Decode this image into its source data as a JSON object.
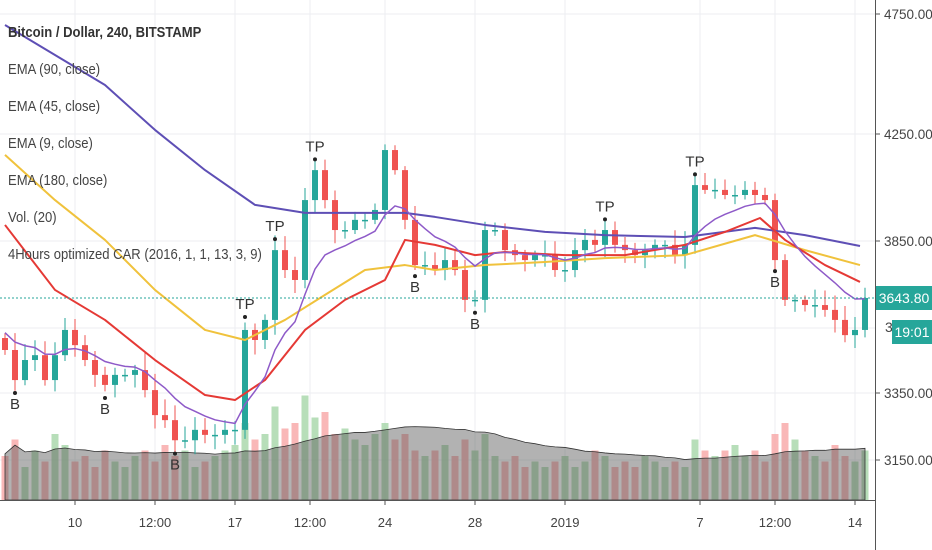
{
  "legend": {
    "title": "Bitcoin / Dollar, 240, BITSTAMP",
    "items": [
      "EMA (90, close)",
      "EMA (45, close)",
      "EMA (9, close)",
      "EMA (180, close)",
      "Vol. (20)",
      "4Hours optimized CAR (2016, 1, 1, 13, 3, 9)"
    ]
  },
  "price_axis": {
    "ticks": [
      "4750.00",
      "4250.00",
      "3850.00",
      "3350.00",
      "3150.00"
    ],
    "partial_tick": "3",
    "last_price": "3643.80",
    "countdown": "19:01"
  },
  "colors": {
    "up": "#26a69a",
    "down": "#ef5350",
    "ema180": "#5e4fb5",
    "ema90": "#f0c23c",
    "ema45": "#e53935",
    "ema9": "#8e5ac8",
    "last_price": "#26a69a"
  },
  "chart_data": {
    "type": "candlestick",
    "title": "Bitcoin / Dollar, 240, BITSTAMP",
    "x_ticks": [
      {
        "label": "10",
        "index": 7
      },
      {
        "label": "12:00",
        "index": 15
      },
      {
        "label": "17",
        "index": 23
      },
      {
        "label": "12:00",
        "index": 30.5
      },
      {
        "label": "24",
        "index": 38
      },
      {
        "label": "28",
        "index": 47
      },
      {
        "label": "2019",
        "index": 56
      },
      {
        "label": "7",
        "index": 69.5
      },
      {
        "label": "12:00",
        "index": 77
      },
      {
        "label": "14",
        "index": 85
      }
    ],
    "y_ticks": [
      4750,
      4250,
      3850,
      3350,
      3150
    ],
    "closes": [
      3483,
      3390,
      3452,
      3467,
      3390,
      3467,
      3545,
      3498,
      3452,
      3406,
      3375,
      3406,
      3406,
      3421,
      3359,
      3284,
      3269,
      3209,
      3209,
      3240,
      3225,
      3225,
      3240,
      3240,
      3545,
      3514,
      3576,
      3817,
      3745,
      3709,
      4003,
      4115,
      4003,
      3891,
      3891,
      3929,
      3929,
      3966,
      4190,
      4115,
      3929,
      3763,
      3763,
      3745,
      3781,
      3745,
      3638,
      3638,
      3891,
      3891,
      3817,
      3799,
      3781,
      3799,
      3799,
      3745,
      3745,
      3817,
      3854,
      3836,
      3891,
      3836,
      3817,
      3799,
      3817,
      3836,
      3836,
      3799,
      3836,
      4059,
      4041,
      4041,
      4022,
      4022,
      4041,
      4022,
      4003,
      3781,
      3638,
      3638,
      3622,
      3622,
      3607,
      3576,
      3529,
      3545,
      3644
    ],
    "first_open": 3520,
    "volume": [
      40,
      55,
      30,
      45,
      35,
      60,
      50,
      35,
      40,
      30,
      45,
      35,
      30,
      40,
      45,
      35,
      50,
      40,
      45,
      30,
      35,
      40,
      45,
      50,
      70,
      55,
      60,
      85,
      65,
      70,
      95,
      75,
      80,
      60,
      65,
      55,
      50,
      60,
      70,
      55,
      60,
      45,
      40,
      45,
      50,
      40,
      55,
      45,
      60,
      40,
      35,
      40,
      30,
      35,
      30,
      35,
      40,
      30,
      35,
      45,
      40,
      30,
      35,
      30,
      40,
      35,
      30,
      35,
      30,
      55,
      45,
      40,
      45,
      50,
      40,
      45,
      35,
      60,
      70,
      55,
      45,
      40,
      35,
      50,
      40,
      35,
      45
    ],
    "series": [
      {
        "name": "EMA (180, close)",
        "points": [
          [
            0,
            4704
          ],
          [
            5,
            4579
          ],
          [
            10,
            4454
          ],
          [
            15,
            4267
          ],
          [
            20,
            4115
          ],
          [
            25,
            3985
          ],
          [
            30,
            3955
          ],
          [
            35,
            3955
          ],
          [
            40,
            3955
          ],
          [
            43,
            3940
          ],
          [
            48,
            3910
          ],
          [
            54,
            3884
          ],
          [
            60,
            3872
          ],
          [
            68,
            3865
          ],
          [
            75,
            3899
          ],
          [
            80,
            3872
          ],
          [
            85.5,
            3832
          ]
        ]
      },
      {
        "name": "EMA (90, close)",
        "points": [
          [
            0,
            4172
          ],
          [
            5,
            4003
          ],
          [
            10,
            3854
          ],
          [
            15,
            3673
          ],
          [
            20,
            3545
          ],
          [
            24,
            3514
          ],
          [
            28,
            3576
          ],
          [
            32,
            3655
          ],
          [
            36,
            3745
          ],
          [
            40,
            3763
          ],
          [
            43,
            3745
          ],
          [
            48,
            3763
          ],
          [
            54,
            3774
          ],
          [
            60,
            3788
          ],
          [
            68,
            3799
          ],
          [
            75,
            3872
          ],
          [
            80,
            3817
          ],
          [
            85.5,
            3763
          ]
        ]
      },
      {
        "name": "EMA (45, close)",
        "points": [
          [
            0,
            3910
          ],
          [
            5,
            3673
          ],
          [
            10,
            3576
          ],
          [
            15,
            3452
          ],
          [
            20,
            3344
          ],
          [
            23,
            3329
          ],
          [
            26,
            3390
          ],
          [
            30,
            3545
          ],
          [
            34,
            3638
          ],
          [
            38,
            3709
          ],
          [
            40,
            3854
          ],
          [
            43,
            3836
          ],
          [
            47,
            3799
          ],
          [
            50,
            3810
          ],
          [
            56,
            3799
          ],
          [
            62,
            3799
          ],
          [
            68,
            3836
          ],
          [
            72,
            3884
          ],
          [
            75.5,
            3936
          ],
          [
            78,
            3854
          ],
          [
            82,
            3763
          ],
          [
            85.5,
            3702
          ]
        ]
      }
    ],
    "markers": [
      {
        "label": "TP",
        "index": 24,
        "side": "above"
      },
      {
        "label": "TP",
        "index": 27,
        "side": "above"
      },
      {
        "label": "TP",
        "index": 31,
        "side": "above"
      },
      {
        "label": "TP",
        "index": 60,
        "side": "above"
      },
      {
        "label": "TP",
        "index": 69,
        "side": "above"
      },
      {
        "label": "B",
        "index": 1,
        "side": "below"
      },
      {
        "label": "B",
        "index": 10,
        "side": "below"
      },
      {
        "label": "B",
        "index": 17,
        "side": "below"
      },
      {
        "label": "B",
        "index": 41,
        "side": "below"
      },
      {
        "label": "B",
        "index": 47,
        "side": "below"
      },
      {
        "label": "B",
        "index": 77,
        "side": "below"
      }
    ],
    "last_price": 3643.8
  }
}
